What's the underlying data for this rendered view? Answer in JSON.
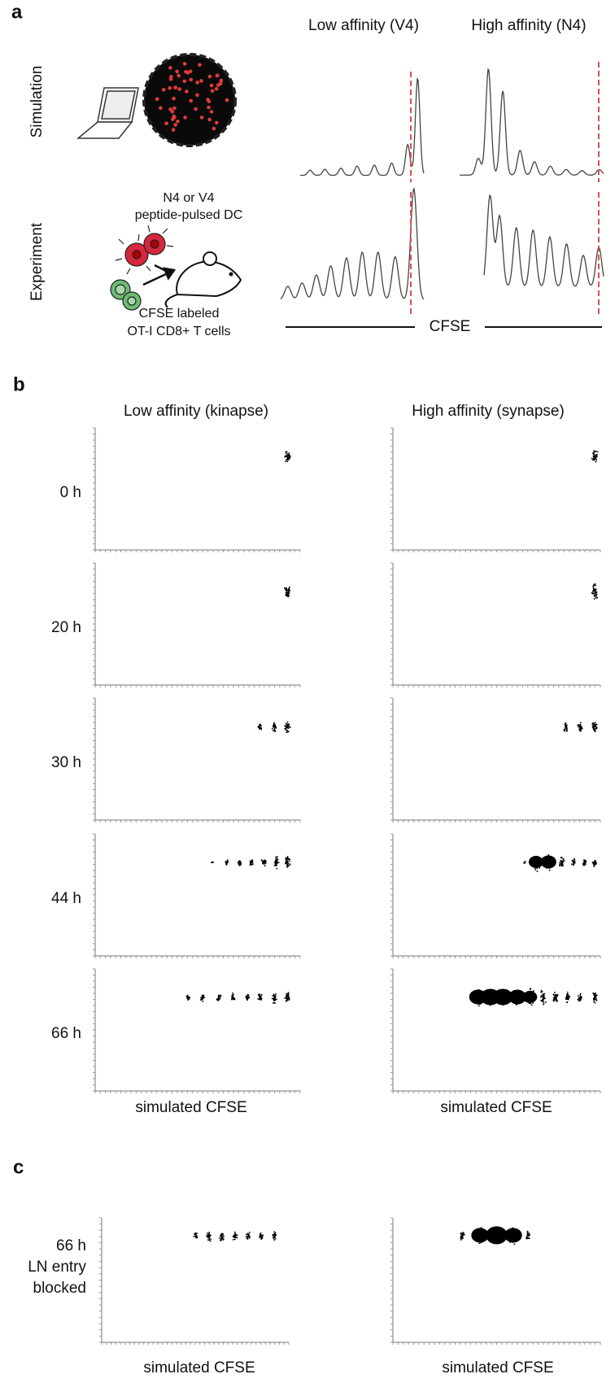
{
  "panel_a": {
    "label": "a",
    "columns": [
      "Low affinity (V4)",
      "High affinity (N4)"
    ],
    "rows": [
      "Simulation",
      "Experiment"
    ],
    "dc_label": [
      "N4 or V4",
      "peptide-pulsed DC"
    ],
    "t_cell_label": [
      "CFSE labeled",
      "OT-I CD8+ T cells"
    ],
    "axis_label": "CFSE"
  },
  "panel_b": {
    "label": "b",
    "columns": [
      "Low affinity (kinapse)",
      "High affinity (synapse)"
    ],
    "rows": [
      "0 h",
      "20 h",
      "30 h",
      "44 h",
      "66 h"
    ],
    "x_labels": [
      "simulated CFSE",
      "simulated CFSE"
    ]
  },
  "panel_c": {
    "label": "c",
    "row_label": [
      "66 h",
      "LN entry",
      "blocked"
    ],
    "x_labels": [
      "simulated CFSE",
      "simulated CFSE"
    ]
  }
}
